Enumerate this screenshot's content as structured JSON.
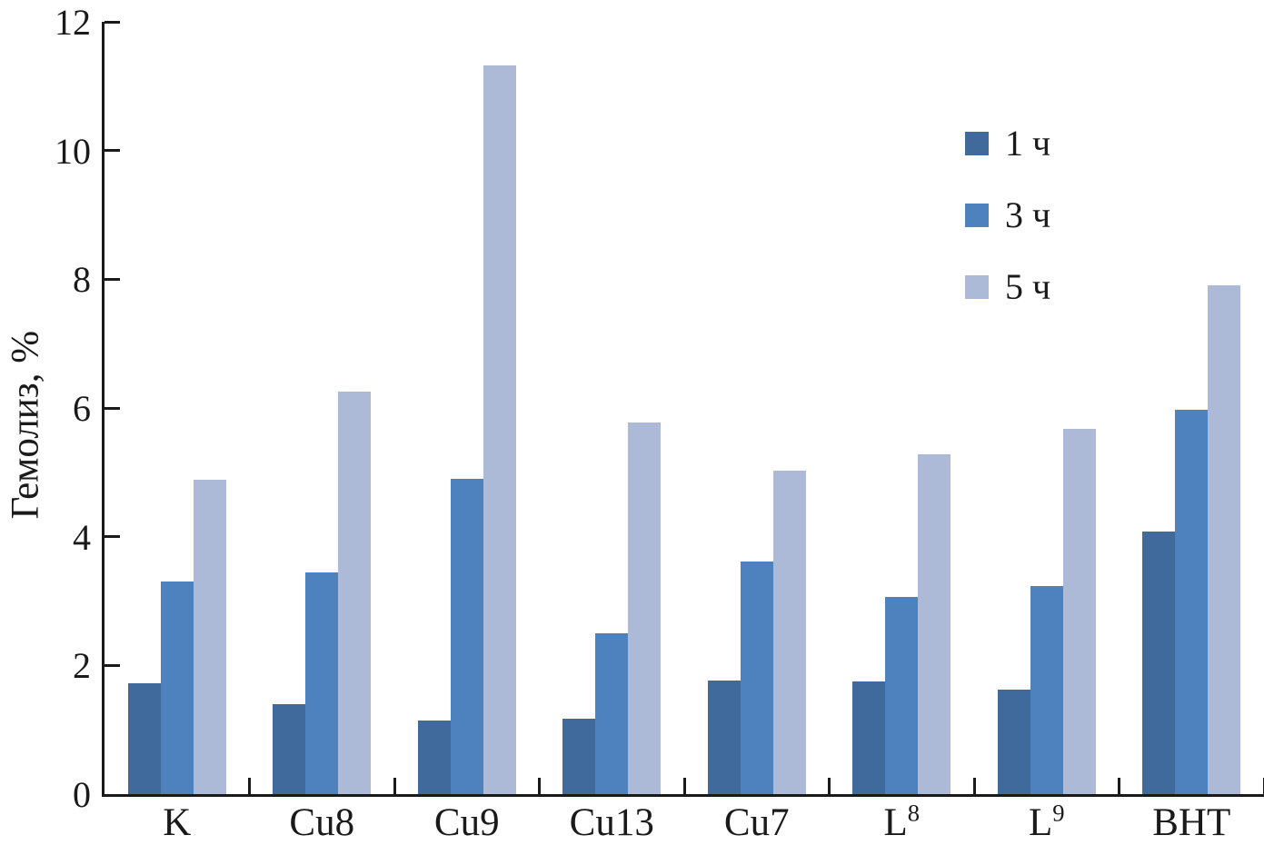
{
  "chart_data": {
    "type": "bar",
    "title": "",
    "ylabel": "Гемолиз, %",
    "xlabel": "",
    "ylim": [
      0,
      12
    ],
    "yticks": [
      0,
      2,
      4,
      6,
      8,
      10,
      12
    ],
    "grid": false,
    "legend_position": "upper right",
    "categories": [
      "K",
      "Cu8",
      "Cu9",
      "Cu13",
      "Cu7",
      "L^8",
      "L^9",
      "BHT"
    ],
    "series": [
      {
        "name": "1 ч",
        "color": "#40699C",
        "values": [
          1.72,
          1.4,
          1.15,
          1.17,
          1.76,
          1.75,
          1.63,
          4.08
        ]
      },
      {
        "name": "3 ч",
        "color": "#4E82BE",
        "values": [
          3.3,
          3.45,
          4.9,
          2.5,
          3.62,
          3.07,
          3.24,
          5.97
        ]
      },
      {
        "name": "5 ч",
        "color": "#ACBAD8",
        "values": [
          4.88,
          6.25,
          11.32,
          5.78,
          5.02,
          5.28,
          5.68,
          7.9
        ]
      }
    ],
    "axis_color": "#1a1a1a",
    "background": "#ffffff"
  }
}
